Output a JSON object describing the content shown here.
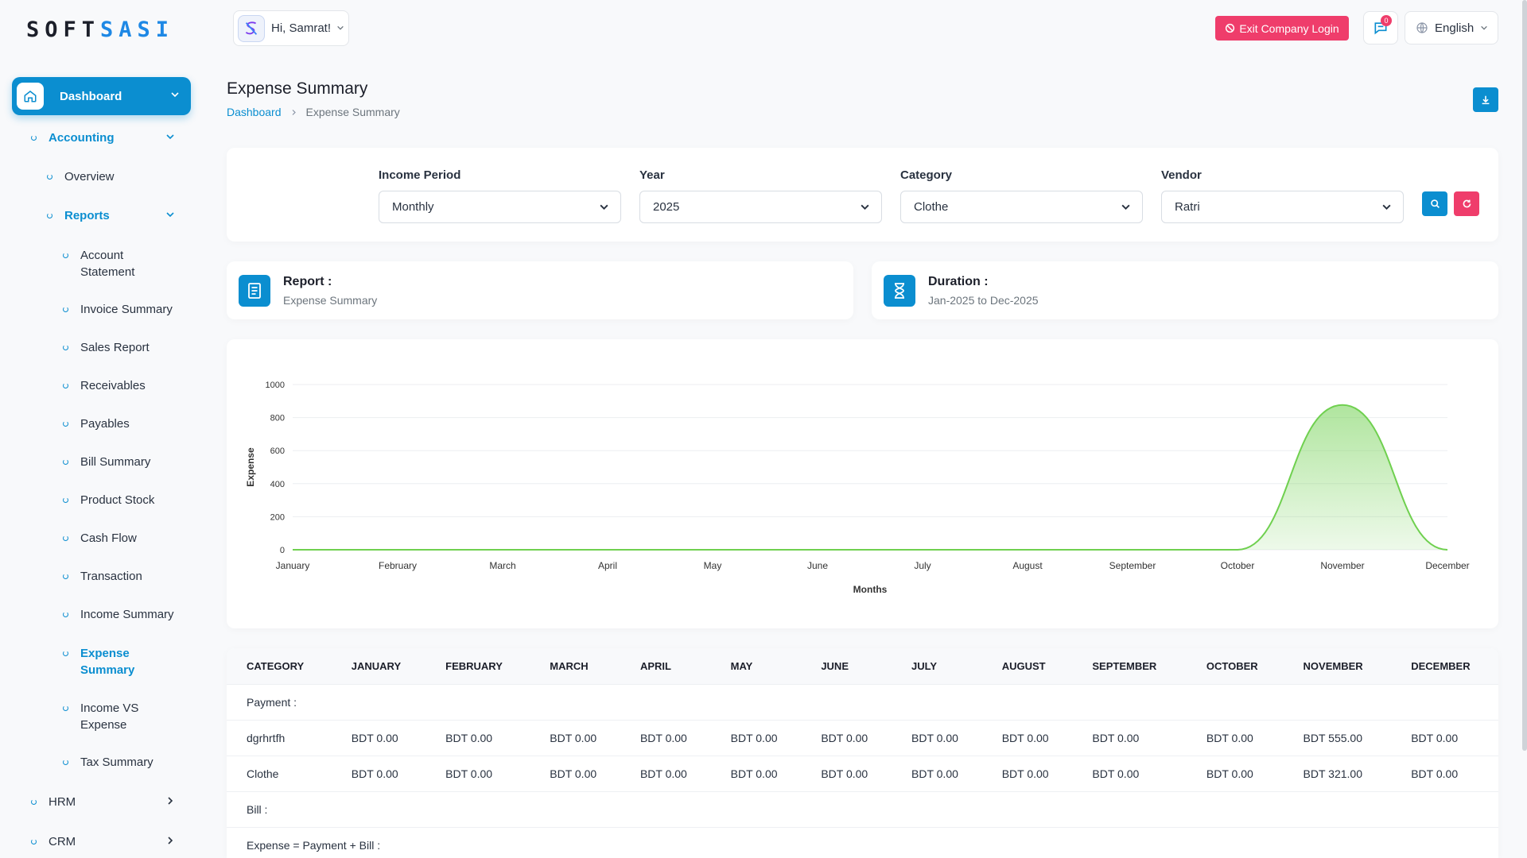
{
  "brand": {
    "prefix": "SOFT",
    "suffix": "SASI"
  },
  "sidebar": {
    "dashboard": "Dashboard",
    "accounting": "Accounting",
    "overview": "Overview",
    "reports": "Reports",
    "report_items": [
      "Account Statement",
      "Invoice Summary",
      "Sales Report",
      "Receivables",
      "Payables",
      "Bill Summary",
      "Product Stock",
      "Cash Flow",
      "Transaction",
      "Income Summary",
      "Expense Summary",
      "Income VS Expense",
      "Tax Summary"
    ],
    "hrm": "HRM",
    "crm": "CRM"
  },
  "topbar": {
    "greeting": "Hi, Samrat!",
    "exit_label": "Exit Company Login",
    "notification_count": "0",
    "language": "English"
  },
  "page": {
    "title": "Expense Summary",
    "breadcrumb_root": "Dashboard",
    "breadcrumb_current": "Expense Summary"
  },
  "filters": {
    "income_period": {
      "label": "Income Period",
      "value": "Monthly"
    },
    "year": {
      "label": "Year",
      "value": "2025"
    },
    "category": {
      "label": "Category",
      "value": "Clothe"
    },
    "vendor": {
      "label": "Vendor",
      "value": "Ratri"
    }
  },
  "info": {
    "report_label": "Report :",
    "report_value": "Expense Summary",
    "duration_label": "Duration :",
    "duration_value": "Jan-2025 to Dec-2025"
  },
  "chart_data": {
    "type": "area",
    "categories": [
      "January",
      "February",
      "March",
      "April",
      "May",
      "June",
      "July",
      "August",
      "September",
      "October",
      "November",
      "December"
    ],
    "values": [
      0,
      0,
      0,
      0,
      0,
      0,
      0,
      0,
      0,
      0,
      876,
      0
    ],
    "xlabel": "Months",
    "ylabel": "Expense",
    "ylim": [
      0,
      1000
    ],
    "yticks": [
      0,
      200,
      400,
      600,
      800,
      1000
    ],
    "color": "#6fd04f",
    "grid": true
  },
  "table": {
    "columns": [
      "CATEGORY",
      "JANUARY",
      "FEBRUARY",
      "MARCH",
      "APRIL",
      "MAY",
      "JUNE",
      "JULY",
      "AUGUST",
      "SEPTEMBER",
      "OCTOBER",
      "NOVEMBER",
      "DECEMBER"
    ],
    "payment_label": "Payment :",
    "rows": [
      [
        "dgrhrtfh",
        "BDT 0.00",
        "BDT 0.00",
        "BDT 0.00",
        "BDT 0.00",
        "BDT 0.00",
        "BDT 0.00",
        "BDT 0.00",
        "BDT 0.00",
        "BDT 0.00",
        "BDT 0.00",
        "BDT 555.00",
        "BDT 0.00"
      ],
      [
        "Clothe",
        "BDT 0.00",
        "BDT 0.00",
        "BDT 0.00",
        "BDT 0.00",
        "BDT 0.00",
        "BDT 0.00",
        "BDT 0.00",
        "BDT 0.00",
        "BDT 0.00",
        "BDT 0.00",
        "BDT 321.00",
        "BDT 0.00"
      ]
    ],
    "bill_label": "Bill :",
    "total_label": "Expense = Payment + Bill :"
  }
}
